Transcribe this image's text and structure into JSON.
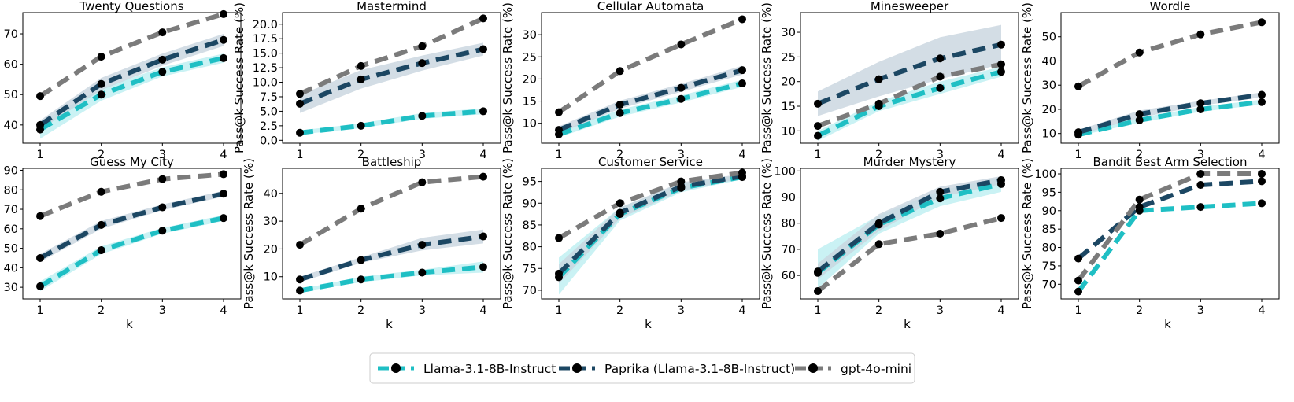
{
  "chart_data": {
    "type": "line",
    "series_names": [
      "Llama-3.1-8B-Instruct",
      "Paprika (Llama-3.1-8B-Instruct)",
      "gpt-4o-mini"
    ],
    "series_colors": [
      "#1fbfc4",
      "#1c4763",
      "#7b7b7b"
    ],
    "band_colors": [
      "#b8eef0",
      "#c8d4de",
      null
    ],
    "x": [
      1,
      2,
      3,
      4
    ],
    "xlabel": "k",
    "ylabel": "Pass@k Success Rate (%)",
    "panels": [
      {
        "title": "Twenty Questions",
        "ylim": [
          34,
          77
        ],
        "yticks": [
          40,
          50,
          60,
          70
        ],
        "series": [
          {
            "values": [
              38.5,
              50,
              57.5,
              62
            ],
            "lower": [
              35.5,
              48,
              56,
              60.5
            ],
            "upper": [
              41,
              52,
              59,
              63.5
            ]
          },
          {
            "values": [
              40,
              53.5,
              61.5,
              68
            ],
            "lower": [
              38.5,
              51.5,
              59.5,
              66
            ],
            "upper": [
              41.5,
              55.5,
              63.5,
              70
            ]
          },
          {
            "values": [
              49.5,
              62.5,
              70.5,
              76.5
            ]
          }
        ]
      },
      {
        "title": "Mastermind",
        "ylim": [
          -0.5,
          22
        ],
        "yticks": [
          0.0,
          2.5,
          5.0,
          7.5,
          10.0,
          12.5,
          15.0,
          17.5,
          20.0
        ],
        "ytick_labels": [
          "0.0",
          "2.5",
          "5.0",
          "7.5",
          "10.0",
          "12.5",
          "15.0",
          "17.5",
          "20.0"
        ],
        "series": [
          {
            "values": [
              1.3,
              2.5,
              4.2,
              5.0
            ],
            "lower": [
              1.0,
              2.1,
              3.7,
              4.5
            ],
            "upper": [
              1.7,
              2.9,
              4.7,
              5.5
            ]
          },
          {
            "values": [
              6.3,
              10.5,
              13.3,
              15.7
            ],
            "lower": [
              4.7,
              8.9,
              12.0,
              14.6
            ],
            "upper": [
              7.8,
              12.1,
              14.6,
              16.8
            ]
          },
          {
            "values": [
              8.0,
              12.8,
              16.2,
              21.0
            ]
          }
        ]
      },
      {
        "title": "Cellular Automata",
        "ylim": [
          5.5,
          35
        ],
        "yticks": [
          10,
          15,
          20,
          25,
          30
        ],
        "series": [
          {
            "values": [
              7.5,
              12.3,
              15.5,
              19
            ],
            "lower": [
              6.8,
              11.5,
              14.7,
              18.2
            ],
            "upper": [
              8.2,
              13.1,
              16.3,
              19.8
            ]
          },
          {
            "values": [
              8.5,
              14.2,
              18,
              22
            ],
            "lower": [
              7.7,
              13.3,
              17.1,
              21
            ],
            "upper": [
              9.3,
              15.1,
              18.9,
              23
            ]
          },
          {
            "values": [
              12.5,
              21.8,
              27.8,
              33.5
            ]
          }
        ]
      },
      {
        "title": "Minesweeper",
        "ylim": [
          7.5,
          34
        ],
        "yticks": [
          10,
          15,
          20,
          25,
          30
        ],
        "series": [
          {
            "values": [
              9,
              15,
              18.7,
              22
            ],
            "lower": [
              8,
              14,
              17.5,
              21
            ],
            "upper": [
              10,
              16,
              20,
              23
            ]
          },
          {
            "values": [
              15.5,
              20.5,
              24.7,
              27.5
            ],
            "lower": [
              13,
              17,
              20.5,
              23.5
            ],
            "upper": [
              18,
              24,
              29,
              31.5
            ]
          },
          {
            "values": [
              11,
              15.5,
              21,
              23.5
            ]
          }
        ]
      },
      {
        "title": "Wordle",
        "ylim": [
          6,
          60
        ],
        "yticks": [
          10,
          20,
          30,
          40,
          50
        ],
        "series": [
          {
            "values": [
              9.5,
              15.5,
              20,
              23
            ],
            "lower": [
              9,
              14.5,
              19,
              22
            ],
            "upper": [
              10,
              16.5,
              21,
              24
            ]
          },
          {
            "values": [
              10.5,
              18,
              22.5,
              26
            ],
            "lower": [
              9.5,
              16.5,
              21.5,
              25
            ],
            "upper": [
              11.5,
              19.5,
              23.5,
              27
            ]
          },
          {
            "values": [
              29.5,
              43.5,
              51,
              56
            ]
          }
        ]
      },
      {
        "title": "Guess My City",
        "ylim": [
          24,
          91
        ],
        "yticks": [
          30,
          40,
          50,
          60,
          70,
          80,
          90
        ],
        "series": [
          {
            "values": [
              30.5,
              49,
              59,
              65.5
            ],
            "lower": [
              28,
              47,
              57.5,
              64
            ],
            "upper": [
              33,
              51,
              60.5,
              67
            ]
          },
          {
            "values": [
              45,
              62,
              71,
              78
            ],
            "lower": [
              43,
              60,
              69.5,
              76.5
            ],
            "upper": [
              47,
              64,
              72.5,
              79.5
            ]
          },
          {
            "values": [
              66.5,
              79,
              85.5,
              88
            ]
          }
        ]
      },
      {
        "title": "Battleship",
        "ylim": [
          2,
          49
        ],
        "yticks": [
          10,
          20,
          30,
          40
        ],
        "series": [
          {
            "values": [
              5,
              9,
              11.5,
              13.5
            ],
            "lower": [
              4.5,
              8,
              10.5,
              11.5
            ],
            "upper": [
              5.5,
              10,
              12.5,
              15.5
            ]
          },
          {
            "values": [
              9,
              16,
              21.5,
              24.5
            ],
            "lower": [
              8,
              15,
              19.5,
              22
            ],
            "upper": [
              10,
              17,
              24,
              27
            ]
          },
          {
            "values": [
              21.5,
              34.5,
              44,
              46
            ]
          }
        ]
      },
      {
        "title": "Customer Service",
        "ylim": [
          68,
          98
        ],
        "yticks": [
          70,
          75,
          80,
          85,
          90,
          95
        ],
        "series": [
          {
            "values": [
              73,
              87.5,
              93.5,
              96
            ],
            "lower": [
              69,
              86,
              92.5,
              95.5
            ],
            "upper": [
              77.5,
              89,
              94.5,
              96.5
            ]
          },
          {
            "values": [
              73.8,
              87.8,
              93.8,
              96.2
            ],
            "lower": [
              71.5,
              86.5,
              92.8,
              95.7
            ],
            "upper": [
              76,
              89,
              94.8,
              96.7
            ]
          },
          {
            "values": [
              82,
              90,
              95,
              97
            ]
          }
        ]
      },
      {
        "title": "Murder Mystery",
        "ylim": [
          51,
          101
        ],
        "yticks": [
          60,
          70,
          80,
          90,
          100
        ],
        "series": [
          {
            "values": [
              61,
              79.5,
              89.5,
              95
            ],
            "lower": [
              55,
              76,
              86.5,
              92
            ],
            "upper": [
              70,
              83,
              92.5,
              97.5
            ]
          },
          {
            "values": [
              61.5,
              80,
              92,
              96.5
            ],
            "lower": [
              58.5,
              77,
              90,
              95
            ],
            "upper": [
              64.5,
              83.5,
              94,
              98
            ]
          },
          {
            "values": [
              54,
              72,
              76,
              82
            ]
          }
        ]
      },
      {
        "title": "Bandit Best Arm Selection",
        "ylim": [
          66,
          101.5
        ],
        "yticks": [
          70,
          75,
          80,
          85,
          90,
          95,
          100
        ],
        "series": [
          {
            "values": [
              68,
              90,
              91,
              92
            ]
          },
          {
            "values": [
              77,
              91,
              97,
              98
            ]
          },
          {
            "values": [
              71,
              93,
              100,
              100
            ]
          }
        ]
      }
    ]
  }
}
